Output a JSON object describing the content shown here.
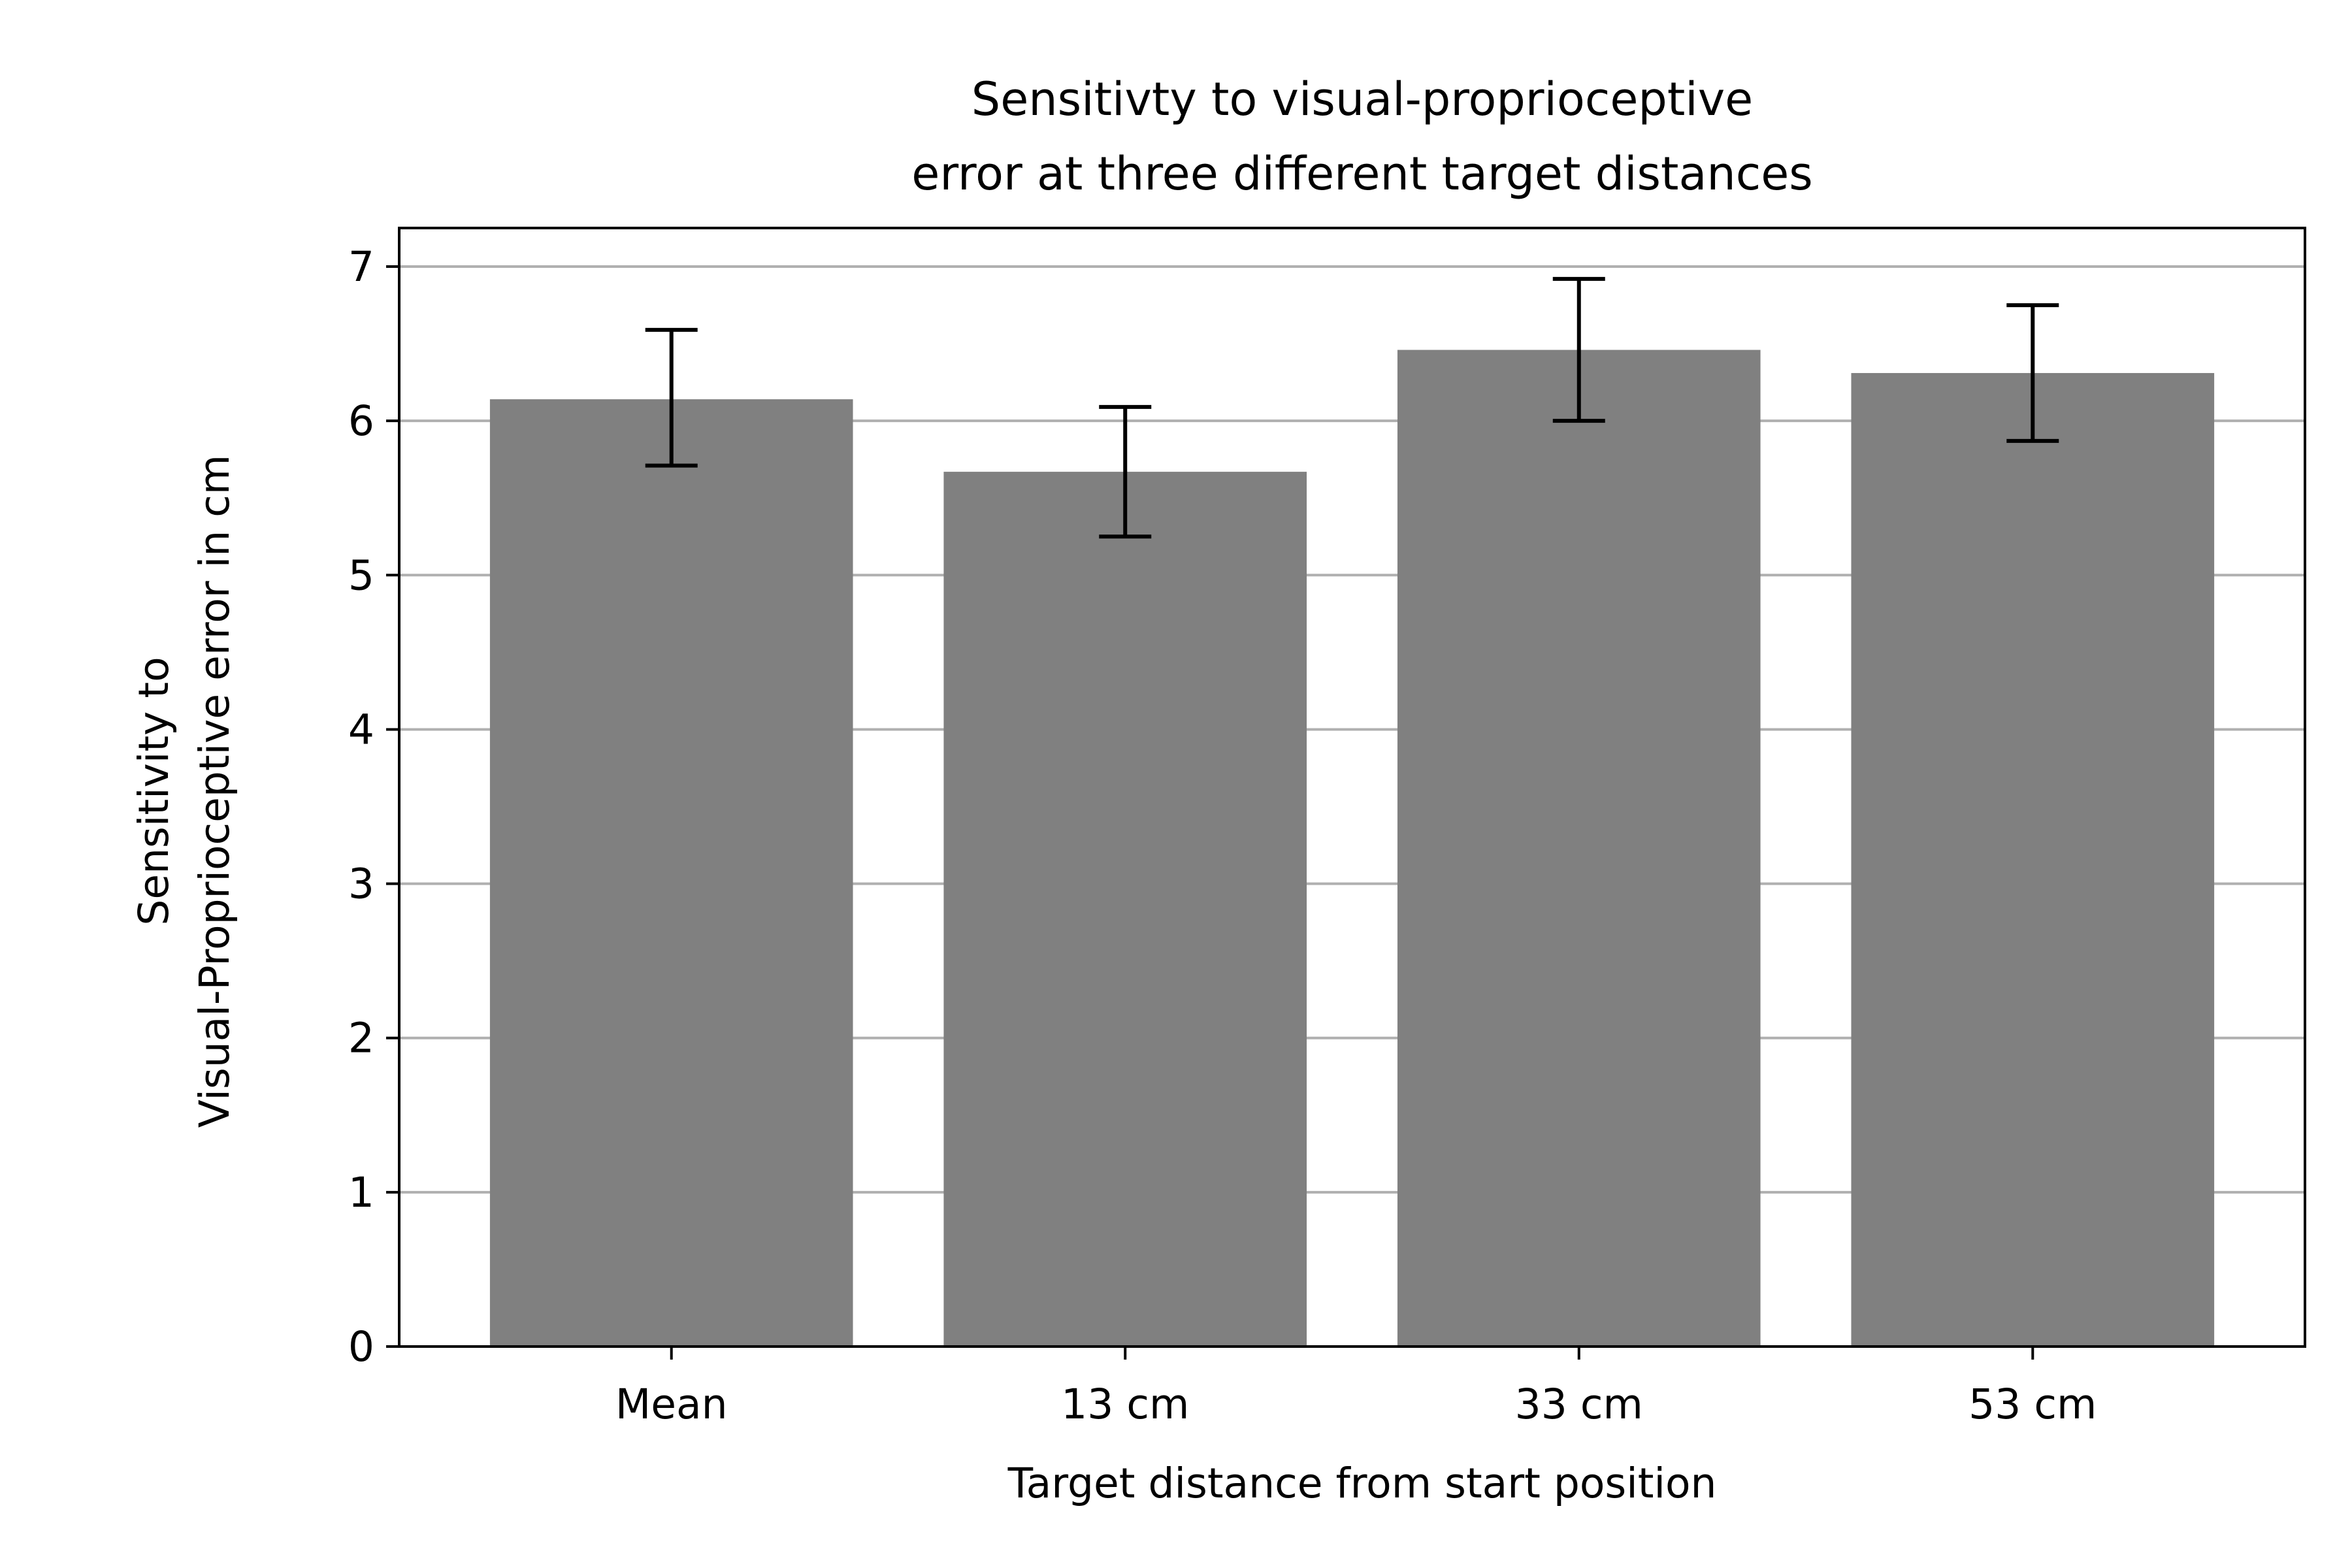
{
  "chart_data": {
    "type": "bar",
    "title_lines": [
      "Sensitivty to visual-proprioceptive",
      "error at three different target distances"
    ],
    "xlabel": "Target distance from start position",
    "ylabel_lines": [
      "Sensitivity to",
      "Visual-Proprioceptive error in cm"
    ],
    "categories": [
      "Mean",
      "13 cm",
      "33 cm",
      "53 cm"
    ],
    "values": [
      6.14,
      5.67,
      6.46,
      6.31
    ],
    "error_low": [
      5.71,
      5.25,
      6.0,
      5.87
    ],
    "error_high": [
      6.59,
      6.09,
      6.92,
      6.75
    ],
    "ylim": [
      0,
      7.25
    ],
    "yticks": [
      0,
      1,
      2,
      3,
      4,
      5,
      6,
      7
    ],
    "grid": "y",
    "colors": {
      "bar": "#808080",
      "error": "#000000",
      "grid": "#b0b0b0",
      "axis": "#000000"
    }
  }
}
